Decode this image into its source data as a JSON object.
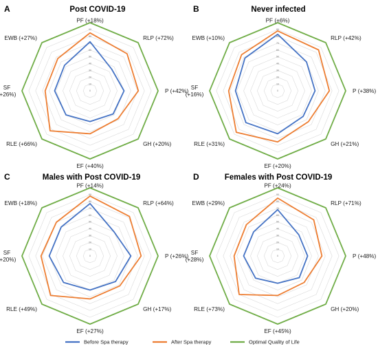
{
  "legend": [
    {
      "name": "Before Spa therapy",
      "color": "#4472C4"
    },
    {
      "name": "After Spa therapy",
      "color": "#ED7D31"
    },
    {
      "name": "Optimal Quality of Life",
      "color": "#70AD47"
    }
  ],
  "chart_data": [
    {
      "type": "radar",
      "panel": "A",
      "title": "Post COVID-19",
      "rlim": [
        0,
        100
      ],
      "ticks": [
        0,
        10,
        20,
        30,
        40,
        50,
        60,
        70,
        80,
        90,
        100
      ],
      "grid": true,
      "legend_position": "bottom",
      "axes": [
        "PF (+18%)",
        "RLP (+72%)",
        "P (+42%)",
        "GH (+20%)",
        "EF (+40%)",
        "RLE (+66%)",
        "SF (+26%)",
        "EWB (+27%)"
      ],
      "series": [
        {
          "name": "Before Spa therapy",
          "values": [
            72,
            45,
            50,
            48,
            45,
            50,
            52,
            53
          ]
        },
        {
          "name": "After Spa therapy",
          "values": [
            85,
            77,
            71,
            58,
            63,
            83,
            66,
            67
          ]
        },
        {
          "name": "Optimal Quality of Life",
          "values": [
            100,
            100,
            100,
            100,
            100,
            100,
            100,
            100
          ]
        }
      ]
    },
    {
      "type": "radar",
      "panel": "B",
      "title": "Never infected",
      "rlim": [
        0,
        100
      ],
      "ticks": [
        0,
        10,
        20,
        30,
        40,
        50,
        60,
        70,
        80,
        90,
        100
      ],
      "grid": true,
      "legend_position": "bottom",
      "axes": [
        "PF (+6%)",
        "RLP (+42%)",
        "P (+38%)",
        "GH (+21%)",
        "EF (+20%)",
        "RLE (+31%)",
        "SF (+16%)",
        "EWB (+10%)"
      ],
      "series": [
        {
          "name": "Before Spa therapy",
          "values": [
            83,
            60,
            55,
            53,
            63,
            66,
            62,
            68
          ]
        },
        {
          "name": "After Spa therapy",
          "values": [
            88,
            85,
            76,
            64,
            75,
            86,
            72,
            75
          ]
        },
        {
          "name": "Optimal Quality of Life",
          "values": [
            100,
            100,
            100,
            100,
            100,
            100,
            100,
            100
          ]
        }
      ]
    },
    {
      "type": "radar",
      "panel": "C",
      "title": "Males with Post COVID-19",
      "rlim": [
        0,
        100
      ],
      "ticks": [
        0,
        10,
        20,
        30,
        40,
        50,
        60,
        70,
        80,
        90,
        100
      ],
      "grid": true,
      "legend_position": "bottom",
      "axes": [
        "PF (+14%)",
        "RLP (+64%)",
        "P (+26%)",
        "GH (+17%)",
        "EF (+27%)",
        "RLE (+49%)",
        "SF (+20%)",
        "EWB (+18%)"
      ],
      "series": [
        {
          "name": "Before Spa therapy",
          "values": [
            77,
            50,
            60,
            53,
            50,
            55,
            60,
            60
          ]
        },
        {
          "name": "After Spa therapy",
          "values": [
            88,
            82,
            75,
            62,
            63,
            82,
            72,
            70
          ]
        },
        {
          "name": "Optimal Quality of Life",
          "values": [
            100,
            100,
            100,
            100,
            100,
            100,
            100,
            100
          ]
        }
      ]
    },
    {
      "type": "radar",
      "panel": "D",
      "title": "Females with Post COVID-19",
      "rlim": [
        0,
        100
      ],
      "ticks": [
        0,
        10,
        20,
        30,
        40,
        50,
        60,
        70,
        80,
        90,
        100
      ],
      "grid": true,
      "legend_position": "bottom",
      "axes": [
        "PF (+24%)",
        "RLP (+71%)",
        "P (+48%)",
        "GH (+20%)",
        "EF (+45%)",
        "RLE (+73%)",
        "SF (+28%)",
        "EWB (+29%)"
      ],
      "series": [
        {
          "name": "Before Spa therapy",
          "values": [
            68,
            44,
            44,
            45,
            40,
            46,
            50,
            50
          ]
        },
        {
          "name": "After Spa therapy",
          "values": [
            85,
            75,
            65,
            55,
            58,
            80,
            64,
            65
          ]
        },
        {
          "name": "Optimal Quality of Life",
          "values": [
            100,
            100,
            100,
            100,
            100,
            100,
            100,
            100
          ]
        }
      ]
    }
  ]
}
